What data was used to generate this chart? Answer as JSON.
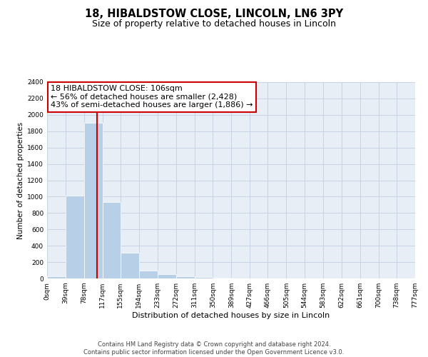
{
  "title": "18, HIBALDSTOW CLOSE, LINCOLN, LN6 3PY",
  "subtitle": "Size of property relative to detached houses in Lincoln",
  "xlabel": "Distribution of detached houses by size in Lincoln",
  "ylabel": "Number of detached properties",
  "annotation_line1": "18 HIBALDSTOW CLOSE: 106sqm",
  "annotation_line2": "← 56% of detached houses are smaller (2,428)",
  "annotation_line3": "43% of semi-detached houses are larger (1,886) →",
  "footer_line1": "Contains HM Land Registry data © Crown copyright and database right 2024.",
  "footer_line2": "Contains public sector information licensed under the Open Government Licence v3.0.",
  "bar_values": [
    30,
    1010,
    1900,
    930,
    310,
    100,
    50,
    30,
    15,
    5,
    2,
    0,
    0,
    0,
    0,
    0,
    0,
    0,
    0,
    0
  ],
  "bin_edges": [
    0,
    39,
    78,
    117,
    155,
    194,
    233,
    272,
    311,
    350,
    389,
    427,
    466,
    505,
    544,
    583,
    622,
    661,
    700,
    738,
    777
  ],
  "tick_labels": [
    "0sqm",
    "39sqm",
    "78sqm",
    "117sqm",
    "155sqm",
    "194sqm",
    "233sqm",
    "272sqm",
    "311sqm",
    "350sqm",
    "389sqm",
    "427sqm",
    "466sqm",
    "505sqm",
    "544sqm",
    "583sqm",
    "622sqm",
    "661sqm",
    "700sqm",
    "738sqm",
    "777sqm"
  ],
  "ylim": [
    0,
    2400
  ],
  "yticks": [
    0,
    200,
    400,
    600,
    800,
    1000,
    1200,
    1400,
    1600,
    1800,
    2000,
    2200,
    2400
  ],
  "bar_color": "#b8cfe8",
  "bar_edge_color": "#ffffff",
  "red_line_x": 106,
  "background_color": "#ffffff",
  "axes_bg_color": "#e8eef6",
  "grid_color": "#c8d4e4",
  "annotation_box_color": "#ffffff",
  "annotation_box_edge": "#cc0000",
  "title_fontsize": 10.5,
  "subtitle_fontsize": 9,
  "axis_label_fontsize": 8,
  "tick_fontsize": 6.5,
  "annotation_fontsize": 8,
  "ylabel_fontsize": 7.5
}
